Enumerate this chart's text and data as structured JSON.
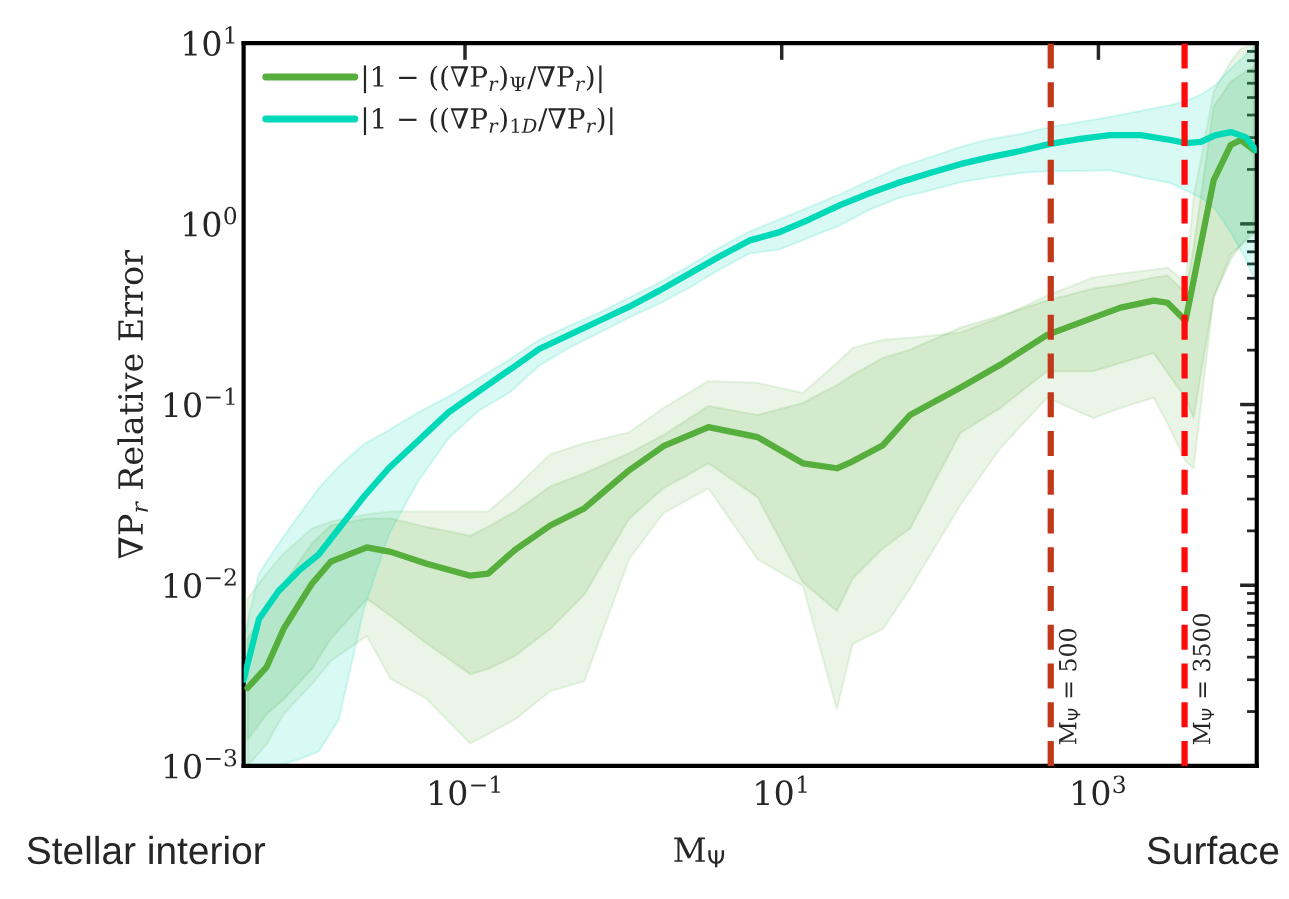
{
  "chart_data": {
    "type": "line",
    "ylabel": "∇P$_{r}$ Relative Error",
    "xlabel": "M$_{Ψ}$",
    "annotations": [
      "Stellar interior",
      "Surface"
    ],
    "log": "xy",
    "xlim": [
      0.004,
      10000
    ],
    "ylim": [
      0.001,
      10
    ],
    "xticks": [
      {
        "value": 0.1,
        "label": "10$^{−1}$"
      },
      {
        "value": 10,
        "label": "10$^{1}$"
      },
      {
        "value": 1000,
        "label": "10$^{3}$"
      }
    ],
    "yticks": [
      {
        "value": 0.001,
        "label": "10$^{−3}$"
      },
      {
        "value": 0.01,
        "label": "10$^{−2}$"
      },
      {
        "value": 0.1,
        "label": "10$^{−1}$"
      },
      {
        "value": 1,
        "label": "10$^{0}$"
      },
      {
        "value": 10,
        "label": "10$^{1}$"
      }
    ],
    "grid": false,
    "legend": "top left",
    "line_style": "solid",
    "marker": "none",
    "ref_lines": [
      {
        "axis": "x",
        "value": 500,
        "label": "M$_{Ψ}$ = 500",
        "color": "#c1391b",
        "line_style": "dashed"
      },
      {
        "axis": "x",
        "value": 3500,
        "label": "M$_{Ψ}$ = 3500",
        "color": "#ff0a0a",
        "line_style": "dashed"
      }
    ],
    "series": [
      {
        "name": "|1 − ((∇P$_{r}$)$_{Ψ}$/∇P$_{r}$)|",
        "color": "#56ae3c",
        "x": [
          0.00423,
          0.00558,
          0.00715,
          0.0108,
          0.0142,
          0.024,
          0.034,
          0.0566,
          0.108,
          0.14,
          0.207,
          0.345,
          0.566,
          1.09,
          1.79,
          3.45,
          7.05,
          13.6,
          22.3,
          28.1,
          43.6,
          64.6,
          134,
          240,
          475,
          929,
          1380,
          2230,
          2730,
          3550,
          3990,
          5340,
          6840,
          7920,
          9580
        ],
        "values": [
          0.0027,
          0.00352,
          0.00573,
          0.0102,
          0.0135,
          0.0162,
          0.0153,
          0.0132,
          0.0113,
          0.0116,
          0.0157,
          0.0214,
          0.0266,
          0.0433,
          0.0588,
          0.075,
          0.066,
          0.0473,
          0.0444,
          0.0485,
          0.0596,
          0.0875,
          0.124,
          0.166,
          0.243,
          0.303,
          0.344,
          0.376,
          0.366,
          0.291,
          0.485,
          1.74,
          2.73,
          2.91,
          2.56
        ],
        "lower": [
          0.0014,
          0.00193,
          0.00234,
          0.00344,
          0.00505,
          0.0084,
          0.00676,
          0.0048,
          0.00322,
          0.00344,
          0.00406,
          0.00573,
          0.00885,
          0.0234,
          0.0344,
          0.0473,
          0.0306,
          0.0104,
          0.00721,
          0.0109,
          0.016,
          0.0206,
          0.0695,
          0.0957,
          0.153,
          0.153,
          0.17,
          0.193,
          0.15,
          0.109,
          0.0841,
          0.391,
          0.635,
          0.76,
          0.931
        ],
        "upper": [
          0.00505,
          0.0074,
          0.0102,
          0.017,
          0.0214,
          0.0234,
          0.0234,
          0.0211,
          0.0188,
          0.0211,
          0.0256,
          0.0352,
          0.0416,
          0.0538,
          0.0678,
          0.0982,
          0.0875,
          0.102,
          0.128,
          0.146,
          0.181,
          0.201,
          0.266,
          0.31,
          0.376,
          0.439,
          0.461,
          0.505,
          0.518,
          0.416,
          0.74,
          4.44,
          6.11,
          6.68,
          7.4
        ]
      },
      {
        "color": "#56ae3c",
        "x": [
          0.00423,
          0.00558,
          0.00715,
          0.0108,
          0.0142,
          0.024,
          0.034,
          0.0566,
          0.108,
          0.14,
          0.207,
          0.345,
          0.566,
          1.09,
          1.79,
          3.45,
          7.05,
          13.6,
          22.3,
          28.1,
          43.6,
          64.6,
          134,
          240,
          475,
          929,
          1380,
          2230,
          2730,
          3550,
          3990,
          5340,
          6840,
          7920,
          9580
        ],
        "values": [
          null,
          null,
          null,
          null,
          null,
          null,
          null,
          null,
          null,
          null,
          null,
          null,
          null,
          null,
          null,
          null,
          null,
          null,
          null,
          null,
          null,
          null,
          null,
          null,
          null,
          null,
          null,
          null,
          null,
          null,
          null,
          null,
          null,
          null,
          null
        ],
        "lower": [
          0.001,
          0.00132,
          0.00193,
          0.00284,
          0.00381,
          0.00524,
          0.00303,
          0.00237,
          0.00133,
          0.0015,
          0.00181,
          0.00259,
          0.00294,
          0.014,
          0.025,
          0.0344,
          0.0139,
          0.00993,
          0.00206,
          0.00473,
          0.00573,
          0.00958,
          0.0277,
          0.0573,
          0.109,
          0.0841,
          0.0957,
          0.109,
          0.0789,
          0.0485,
          0.0444,
          0.391,
          0.677,
          0.76,
          0.874
        ],
        "upper": [
          0.0084,
          0.0116,
          0.015,
          0.0206,
          0.0225,
          0.0247,
          0.0256,
          0.0256,
          0.0256,
          0.0256,
          0.0344,
          0.0531,
          0.0611,
          0.0703,
          0.0957,
          0.135,
          0.132,
          0.116,
          0.17,
          0.206,
          0.228,
          0.234,
          0.25,
          0.303,
          0.401,
          0.505,
          0.531,
          0.558,
          0.573,
          0.473,
          1.4,
          5.38,
          7.89,
          9.31,
          9.82
        ]
      },
      {
        "name": "|1 − ((∇P$_{r}$)$_{1D}$/∇P$_{r}$)|",
        "color": "#00d9b8",
        "x": [
          0.004,
          0.005,
          0.00665,
          0.0089,
          0.0119,
          0.016,
          0.023,
          0.033,
          0.051,
          0.079,
          0.123,
          0.19,
          0.294,
          0.455,
          0.705,
          1.09,
          1.69,
          2.62,
          4.05,
          6.27,
          9.7,
          15,
          23.3,
          36,
          55.8,
          86.4,
          134,
          207,
          321,
          497,
          769,
          1190,
          1850,
          2860,
          3550,
          4430,
          5500,
          6850,
          8520,
          9860
        ],
        "values": [
          0.003,
          0.0065,
          0.0093,
          0.012,
          0.0148,
          0.0206,
          0.031,
          0.0444,
          0.0635,
          0.0908,
          0.119,
          0.155,
          0.203,
          0.243,
          0.291,
          0.348,
          0.427,
          0.531,
          0.66,
          0.81,
          0.9,
          1.06,
          1.27,
          1.48,
          1.7,
          1.91,
          2.14,
          2.34,
          2.53,
          2.77,
          2.95,
          3.1,
          3.1,
          2.91,
          2.8,
          2.84,
          3.1,
          3.22,
          3.02,
          2.56
        ],
        "lower": [
          0.001,
          0.001,
          0.001,
          0.00109,
          0.0012,
          0.00181,
          0.0074,
          0.0191,
          0.0381,
          0.0652,
          0.093,
          0.116,
          0.164,
          0.206,
          0.25,
          0.303,
          0.362,
          0.444,
          0.559,
          0.686,
          0.722,
          0.841,
          0.98,
          1.2,
          1.4,
          1.53,
          1.7,
          1.81,
          1.91,
          1.96,
          1.96,
          1.98,
          1.81,
          1.68,
          1.53,
          1.4,
          1.2,
          0.897,
          0.635,
          0.473
        ],
        "upper": [
          0.00505,
          0.0116,
          0.017,
          0.0243,
          0.0344,
          0.0455,
          0.0604,
          0.0722,
          0.0908,
          0.111,
          0.14,
          0.177,
          0.228,
          0.273,
          0.322,
          0.391,
          0.473,
          0.588,
          0.74,
          0.908,
          1.06,
          1.24,
          1.46,
          1.74,
          2.06,
          2.34,
          2.66,
          2.95,
          3.14,
          3.44,
          3.66,
          3.91,
          4.22,
          4.55,
          4.8,
          5.18,
          5.88,
          7.21,
          8.63,
          9.8
        ]
      }
    ]
  }
}
